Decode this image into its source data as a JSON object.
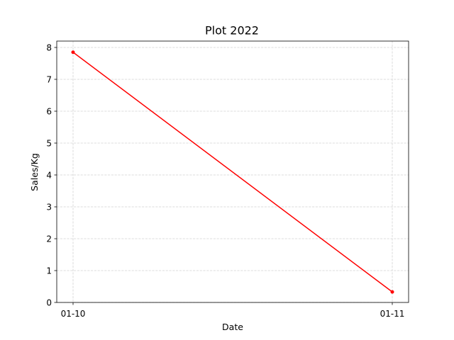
{
  "chart_data": {
    "type": "line",
    "title": "Plot 2022",
    "xlabel": "Date",
    "ylabel": "Sales/Kg",
    "categories": [
      "01-10",
      "01-11"
    ],
    "series": [
      {
        "values": [
          7.85,
          0.33
        ],
        "color": "#ff0000",
        "marker": "point"
      }
    ],
    "ylim": [
      0,
      8.2
    ],
    "y_ticks": [
      0,
      1,
      2,
      3,
      4,
      5,
      6,
      7,
      8
    ],
    "grid": true,
    "grid_style": "dashed",
    "grid_color": "#d3d3d3",
    "legend": "none"
  }
}
